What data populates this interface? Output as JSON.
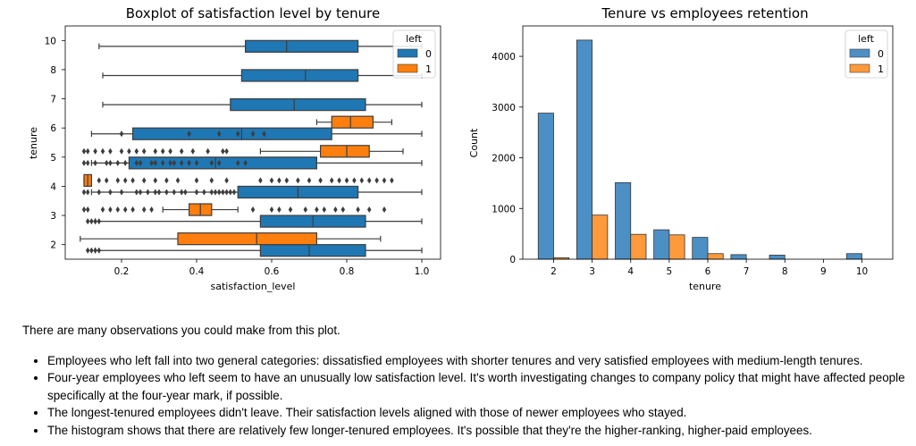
{
  "colors": {
    "stayed": "#1f77b4",
    "left": "#ff7f0e",
    "stayed_hist": "#4c8fc5",
    "left_hist": "#ff9a3c",
    "flier": "#3d3d3d"
  },
  "chart_data": [
    {
      "type": "boxplot",
      "title": "Boxplot of satisfaction level by tenure",
      "xlabel": "satisfaction_level",
      "ylabel": "tenure",
      "xlim": [
        0.05,
        1.05
      ],
      "xticks": [
        "0.2",
        "0.4",
        "0.6",
        "0.8",
        "1.0"
      ],
      "xtick_values": [
        0.2,
        0.4,
        0.6,
        0.8,
        1.0
      ],
      "categories": [
        "10",
        "8",
        "7",
        "6",
        "5",
        "4",
        "3",
        "2"
      ],
      "orientation": "horizontal",
      "grid": false,
      "legend": {
        "title": "left",
        "entries": [
          "0",
          "1"
        ],
        "placement": "top-right"
      },
      "series": [
        {
          "name": "0",
          "boxes": [
            {
              "category": "10",
              "whisker_low": 0.14,
              "q1": 0.53,
              "median": 0.64,
              "q3": 0.83,
              "whisker_high": 1.0,
              "fliers": []
            },
            {
              "category": "8",
              "whisker_low": 0.15,
              "q1": 0.52,
              "median": 0.69,
              "q3": 0.83,
              "whisker_high": 1.0,
              "fliers": []
            },
            {
              "category": "7",
              "whisker_low": 0.15,
              "q1": 0.49,
              "median": 0.66,
              "q3": 0.85,
              "whisker_high": 1.0,
              "fliers": []
            },
            {
              "category": "6",
              "whisker_low": 0.12,
              "q1": 0.23,
              "median": 0.52,
              "q3": 0.76,
              "whisker_high": 1.0,
              "fliers": [
                0.2,
                0.38,
                0.46,
                0.51,
                0.55,
                0.58
              ]
            },
            {
              "category": "5",
              "whisker_low": 0.12,
              "q1": 0.22,
              "median": 0.45,
              "q3": 0.72,
              "whisker_high": 1.0,
              "fliers": [
                0.1,
                0.11,
                0.13,
                0.16,
                0.17,
                0.19,
                0.21,
                0.24,
                0.25,
                0.28,
                0.29,
                0.31,
                0.33,
                0.34,
                0.36,
                0.38,
                0.4,
                0.44,
                0.46,
                0.51,
                0.53
              ]
            },
            {
              "category": "4",
              "whisker_low": 0.12,
              "q1": 0.51,
              "median": 0.67,
              "q3": 0.83,
              "whisker_high": 1.0,
              "fliers": [
                0.1,
                0.11,
                0.14,
                0.17,
                0.2,
                0.24,
                0.25,
                0.27,
                0.29,
                0.3,
                0.32,
                0.34,
                0.36,
                0.37,
                0.4,
                0.42,
                0.44,
                0.45,
                0.46,
                0.47,
                0.48,
                0.49,
                0.5
              ]
            },
            {
              "category": "3",
              "whisker_low": 0.13,
              "q1": 0.57,
              "median": 0.71,
              "q3": 0.85,
              "whisker_high": 1.0,
              "fliers": [
                0.11,
                0.12,
                0.13,
                0.14
              ]
            },
            {
              "category": "2",
              "whisker_low": 0.13,
              "q1": 0.57,
              "median": 0.7,
              "q3": 0.85,
              "whisker_high": 1.0,
              "fliers": [
                0.11,
                0.12,
                0.13,
                0.14
              ]
            }
          ]
        },
        {
          "name": "1",
          "boxes": [
            {
              "category": "6",
              "whisker_low": 0.72,
              "q1": 0.76,
              "median": 0.81,
              "q3": 0.87,
              "whisker_high": 0.92,
              "fliers": []
            },
            {
              "category": "5",
              "whisker_low": 0.57,
              "q1": 0.73,
              "median": 0.8,
              "q3": 0.86,
              "whisker_high": 0.95,
              "fliers": [
                0.1,
                0.11,
                0.13,
                0.15,
                0.17,
                0.2,
                0.22,
                0.24,
                0.26,
                0.29,
                0.31,
                0.33,
                0.36,
                0.39,
                0.43,
                0.47,
                0.48
              ]
            },
            {
              "category": "4",
              "whisker_low": 0.1,
              "q1": 0.1,
              "median": 0.11,
              "q3": 0.12,
              "whisker_high": 0.12,
              "fliers": [
                0.14,
                0.16,
                0.19,
                0.21,
                0.23,
                0.26,
                0.29,
                0.32,
                0.35,
                0.4,
                0.44,
                0.48,
                0.57,
                0.6,
                0.62,
                0.64,
                0.67,
                0.7,
                0.73,
                0.76,
                0.78,
                0.8,
                0.82,
                0.84,
                0.86,
                0.88,
                0.9,
                0.92
              ]
            },
            {
              "category": "3",
              "whisker_low": 0.31,
              "q1": 0.38,
              "median": 0.41,
              "q3": 0.44,
              "whisker_high": 0.51,
              "fliers": [
                0.1,
                0.11,
                0.15,
                0.17,
                0.19,
                0.21,
                0.23,
                0.26,
                0.28,
                0.55,
                0.6,
                0.62,
                0.65,
                0.69,
                0.72,
                0.74,
                0.77,
                0.79,
                0.83,
                0.86,
                0.9
              ]
            },
            {
              "category": "2",
              "whisker_low": 0.09,
              "q1": 0.35,
              "median": 0.56,
              "q3": 0.72,
              "whisker_high": 0.89,
              "fliers": []
            }
          ]
        }
      ]
    },
    {
      "type": "bar",
      "title": "Tenure vs employees retention",
      "xlabel": "tenure",
      "ylabel": "Count",
      "categories": [
        "2",
        "3",
        "4",
        "5",
        "6",
        "7",
        "8",
        "9",
        "10"
      ],
      "ylim": [
        0,
        4600
      ],
      "yticks": [
        0,
        1000,
        2000,
        3000,
        4000
      ],
      "grid": false,
      "legend": {
        "title": "left",
        "entries": [
          "0",
          "1"
        ],
        "placement": "top-right"
      },
      "series": [
        {
          "name": "0",
          "values": [
            2880,
            4320,
            1510,
            580,
            430,
            90,
            80,
            0,
            110
          ]
        },
        {
          "name": "1",
          "values": [
            30,
            870,
            490,
            480,
            110,
            0,
            0,
            0,
            0
          ]
        }
      ]
    }
  ],
  "text": {
    "intro": "There are many observations you could make from this plot.",
    "bullets": [
      "Employees who left fall into two general categories: dissatisfied employees with shorter tenures and very satisfied employees with medium-length tenures.",
      "Four-year employees who left seem to have an unusually low satisfaction level. It's worth investigating changes to company policy that might have affected people specifically at the four-year mark, if possible.",
      "The longest-tenured employees didn't leave. Their satisfaction levels aligned with those of newer employees who stayed.",
      "The histogram shows that there are relatively few longer-tenured employees. It's possible that they're the higher-ranking, higher-paid employees."
    ]
  }
}
